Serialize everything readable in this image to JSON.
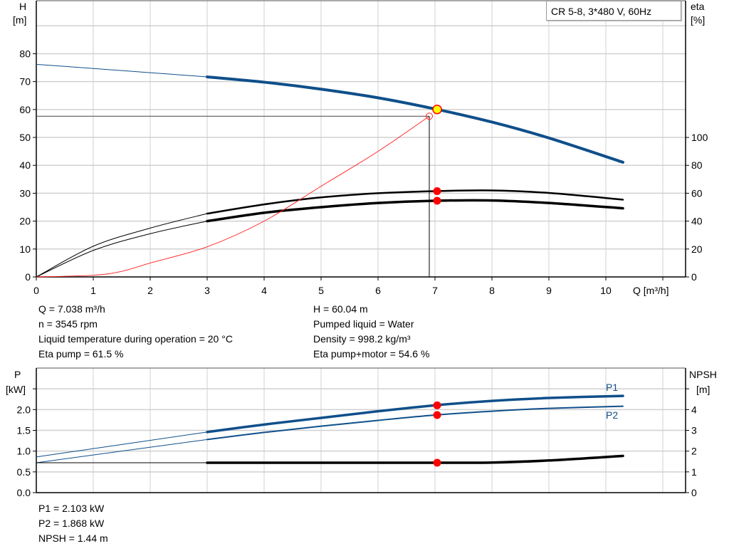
{
  "legend_title": "CR 5-8, 3*480 V, 60Hz",
  "colors": {
    "head": "#0f4f8a",
    "eta": "#000000",
    "system": "#ff2020",
    "point": "#ff0000",
    "op_fill": "#ffff00",
    "grid": "#d0d0d0"
  },
  "chart_data": [
    {
      "type": "line",
      "xlabel": "Q [m³/h]",
      "ylabel_left": [
        "H",
        "[m]"
      ],
      "ylabel_right": [
        "eta",
        "[%]"
      ],
      "xlim": [
        0,
        11.4
      ],
      "ylim_left": [
        0,
        99
      ],
      "ylim_right": [
        0,
        198
      ],
      "x_ticks": [
        "0",
        "1",
        "2",
        "3",
        "4",
        "5",
        "6",
        "7",
        "8",
        "9",
        "10"
      ],
      "y_ticks_left": [
        "0",
        "10",
        "20",
        "30",
        "40",
        "50",
        "60",
        "70",
        "80"
      ],
      "y_ticks_right": [
        "0",
        "20",
        "40",
        "60",
        "80",
        "100"
      ],
      "grid": true,
      "series": [
        {
          "id": "head",
          "axis": "left",
          "x": [
            0,
            1,
            2,
            3,
            4,
            5,
            6,
            7,
            8,
            9,
            10.3
          ],
          "y": [
            76.2,
            74.7,
            73.2,
            71.7,
            69.8,
            67.3,
            64.2,
            60.2,
            55.5,
            49.8,
            41.1
          ]
        },
        {
          "id": "eta-pump",
          "axis": "right",
          "x": [
            0,
            1,
            2,
            3,
            4,
            5,
            6,
            7,
            8,
            9,
            10.3
          ],
          "y": [
            0,
            22,
            35,
            45.4,
            52,
            57,
            60,
            61.5,
            62,
            60.2,
            55.4
          ]
        },
        {
          "id": "eta-pump-motor",
          "axis": "right",
          "x": [
            0,
            1,
            2,
            3,
            4,
            5,
            6,
            7,
            8,
            9,
            10.3
          ],
          "y": [
            0,
            19,
            31,
            40,
            46,
            50,
            53,
            54.6,
            54.8,
            53,
            49.2
          ]
        },
        {
          "id": "system-curve",
          "axis": "left",
          "x": [
            0,
            1,
            1.5,
            2,
            3,
            4,
            5,
            6,
            6.9
          ],
          "y": [
            0,
            0.6,
            2,
            5,
            10.8,
            20,
            32.5,
            45,
            57.6
          ]
        }
      ],
      "operating_point": {
        "q": 7.038,
        "h": 60.04,
        "eta_pump": 61.5,
        "eta_pump_motor": 54.6
      },
      "system_point": {
        "q": 6.9,
        "h": 57.6
      }
    },
    {
      "type": "line",
      "ylabel_left": [
        "P",
        "[kW]"
      ],
      "ylabel_right": [
        "NPSH",
        "[m]"
      ],
      "xlim": [
        0,
        11.4
      ],
      "ylim_left": [
        0,
        3.0
      ],
      "ylim_right": [
        0,
        6.0
      ],
      "y_ticks_left": [
        "0.0",
        "0.5",
        "1.0",
        "1.5",
        "2.0"
      ],
      "y_ticks_right": [
        "0",
        "1",
        "2",
        "3",
        "4"
      ],
      "grid": true,
      "series": [
        {
          "id": "P1",
          "name": "P1",
          "axis": "left",
          "x": [
            0,
            3,
            4,
            5,
            6,
            7,
            8,
            9,
            10.3
          ],
          "y": [
            0.86,
            1.46,
            1.64,
            1.8,
            1.96,
            2.103,
            2.21,
            2.28,
            2.33
          ]
        },
        {
          "id": "P2",
          "name": "P2",
          "axis": "left",
          "x": [
            0,
            3,
            4,
            5,
            6,
            7,
            8,
            9,
            10.3
          ],
          "y": [
            0.72,
            1.28,
            1.45,
            1.6,
            1.74,
            1.868,
            1.96,
            2.03,
            2.08
          ]
        },
        {
          "id": "NPSH",
          "axis": "right",
          "x": [
            0,
            3,
            5,
            7,
            8,
            9,
            10.3
          ],
          "y": [
            1.44,
            1.44,
            1.44,
            1.44,
            1.45,
            1.55,
            1.77
          ]
        }
      ],
      "operating_point": {
        "q": 7.038,
        "p1": 2.103,
        "p2": 1.868,
        "npsh": 1.44
      }
    }
  ],
  "info": {
    "left": [
      "Q = 7.038 m³/h",
      "n = 3545 rpm",
      "Liquid temperature during operation = 20 °C",
      "Eta pump = 61.5 %"
    ],
    "right": [
      "H = 60.04 m",
      "Pumped liquid = Water",
      "Density = 998.2 kg/m³",
      "Eta pump+motor = 54.6 %"
    ],
    "bottom": [
      "P1 = 2.103 kW",
      "P2 = 1.868 kW",
      "NPSH = 1.44 m"
    ]
  }
}
